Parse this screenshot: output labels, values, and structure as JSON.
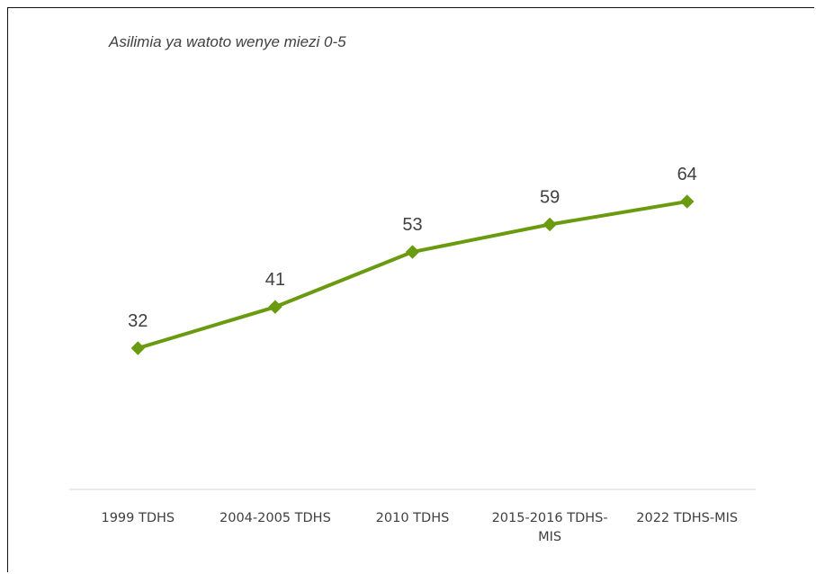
{
  "chart_data": {
    "type": "line",
    "subtitle": "Asilimia ya watoto wenye miezi 0-5",
    "categories": [
      "1999 TDHS",
      "2004-2005 TDHS",
      "2010 TDHS",
      "2015-2016 TDHS-MIS",
      "2022 TDHS-MIS"
    ],
    "tick_labels": [
      [
        "1999 TDHS"
      ],
      [
        "2004-2005 TDHS"
      ],
      [
        "2010 TDHS"
      ],
      [
        "2015-2016 TDHS-",
        "MIS"
      ],
      [
        "2022 TDHS-MIS"
      ]
    ],
    "series": [
      {
        "values": [
          32,
          41,
          53,
          59,
          64
        ],
        "color": "#6a9a10"
      }
    ],
    "data_labels": [
      "32",
      "41",
      "53",
      "59",
      "64"
    ],
    "marker": "diamond",
    "grid": false,
    "legend": "none"
  }
}
